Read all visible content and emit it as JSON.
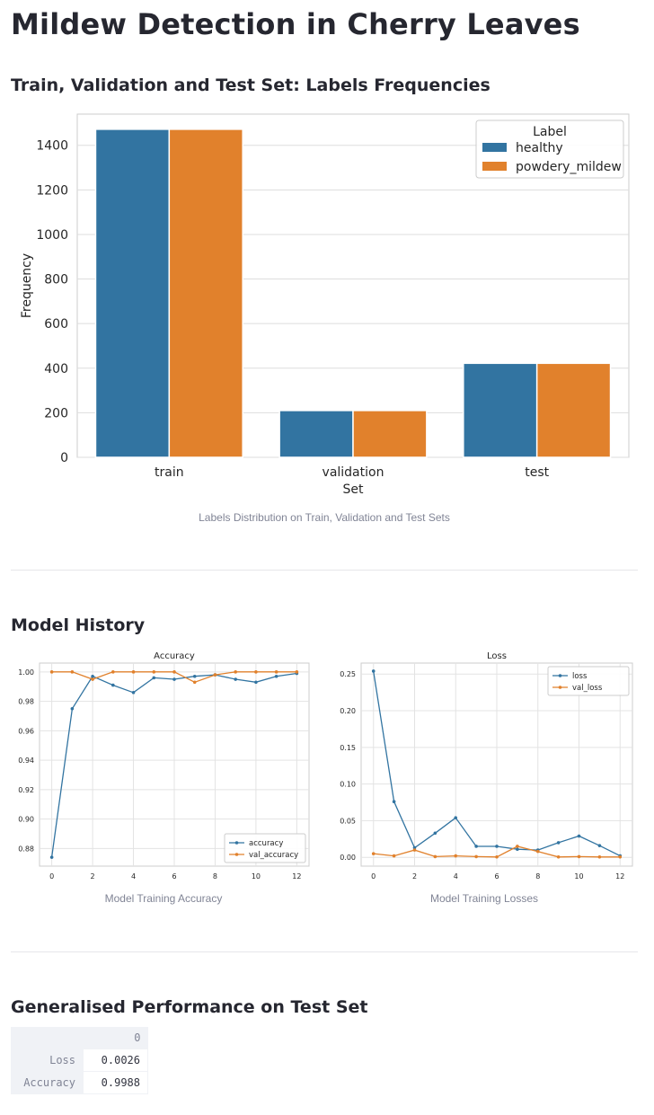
{
  "page": {
    "title": "Mildew Detection in Cherry Leaves"
  },
  "section1": {
    "heading": "Train, Validation and Test Set: Labels Frequencies",
    "caption": "Labels Distribution on Train, Validation and Test Sets"
  },
  "section2": {
    "heading": "Model History",
    "acc_caption": "Model Training Accuracy",
    "loss_caption": "Model Training Losses"
  },
  "section3": {
    "heading": "Generalised Performance on Test Set",
    "table": {
      "column": "0",
      "rows": [
        {
          "label": "Loss",
          "value": "0.0026"
        },
        {
          "label": "Accuracy",
          "value": "0.9988"
        }
      ]
    }
  },
  "chart_data": [
    {
      "type": "bar",
      "title": "",
      "xlabel": "Set",
      "ylabel": "Frequency",
      "categories": [
        "train",
        "validation",
        "test"
      ],
      "series": [
        {
          "name": "healthy",
          "values": [
            1472,
            210,
            422
          ],
          "color": "#3274a1"
        },
        {
          "name": "powdery_mildew",
          "values": [
            1472,
            210,
            422
          ],
          "color": "#e1812c"
        }
      ],
      "ylim": [
        0,
        1540
      ],
      "yticks": [
        0,
        200,
        400,
        600,
        800,
        1000,
        1200,
        1400
      ],
      "legend_title": "Label",
      "legend_position": "top-right",
      "grid": true
    },
    {
      "type": "line",
      "title": "Accuracy",
      "x": [
        0,
        1,
        2,
        3,
        4,
        5,
        6,
        7,
        8,
        9,
        10,
        11,
        12
      ],
      "series": [
        {
          "name": "accuracy",
          "values": [
            0.874,
            0.975,
            0.997,
            0.991,
            0.986,
            0.996,
            0.995,
            0.997,
            0.998,
            0.995,
            0.993,
            0.997,
            0.999
          ],
          "color": "#3274a1"
        },
        {
          "name": "val_accuracy",
          "values": [
            1.0,
            1.0,
            0.995,
            1.0,
            1.0,
            1.0,
            1.0,
            0.993,
            0.998,
            1.0,
            1.0,
            1.0,
            1.0
          ],
          "color": "#e1812c"
        }
      ],
      "xlim": [
        -0.6,
        12.6
      ],
      "ylim": [
        0.868,
        1.006
      ],
      "xticks": [
        0,
        2,
        4,
        6,
        8,
        10,
        12
      ],
      "yticks": [
        "0.88",
        "0.90",
        "0.92",
        "0.94",
        "0.96",
        "0.98",
        "1.00"
      ],
      "legend_position": "bottom-right",
      "grid": true
    },
    {
      "type": "line",
      "title": "Loss",
      "x": [
        0,
        1,
        2,
        3,
        4,
        5,
        6,
        7,
        8,
        9,
        10,
        11,
        12
      ],
      "series": [
        {
          "name": "loss",
          "values": [
            0.254,
            0.076,
            0.013,
            0.033,
            0.054,
            0.015,
            0.015,
            0.011,
            0.01,
            0.02,
            0.029,
            0.016,
            0.002
          ],
          "color": "#3274a1"
        },
        {
          "name": "val_loss",
          "values": [
            0.005,
            0.002,
            0.01,
            0.001,
            0.002,
            0.001,
            0.0005,
            0.015,
            0.008,
            0.0005,
            0.001,
            0.0005,
            0.0005
          ],
          "color": "#e1812c"
        }
      ],
      "xlim": [
        -0.6,
        12.6
      ],
      "ylim": [
        -0.012,
        0.265
      ],
      "xticks": [
        0,
        2,
        4,
        6,
        8,
        10,
        12
      ],
      "yticks": [
        "0.00",
        "0.05",
        "0.10",
        "0.15",
        "0.20",
        "0.25"
      ],
      "legend_position": "top-right",
      "grid": true
    }
  ]
}
